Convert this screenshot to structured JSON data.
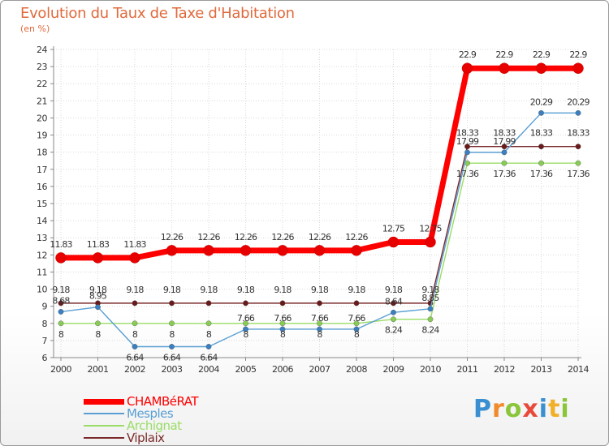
{
  "chart_data": {
    "type": "line",
    "title": "Evolution du Taux de Taxe d'Habitation",
    "subtitle": "(en %)",
    "x": [
      "2000",
      "2001",
      "2002",
      "2003",
      "2004",
      "2005",
      "2006",
      "2007",
      "2008",
      "2009",
      "2010",
      "2011",
      "2012",
      "2013",
      "2014"
    ],
    "ylim": [
      6,
      24
    ],
    "yticks": [
      "6",
      "7",
      "8",
      "9",
      "10",
      "11",
      "12",
      "13",
      "14",
      "15",
      "16",
      "17",
      "18",
      "19",
      "20",
      "21",
      "22",
      "23",
      "24"
    ],
    "grid": true,
    "series": [
      {
        "name": "CHAMBéRAT",
        "color": "#ff0000",
        "marker": "#e60000",
        "values": [
          11.83,
          11.83,
          11.83,
          12.26,
          12.26,
          12.26,
          12.26,
          12.26,
          12.26,
          12.75,
          12.75,
          22.9,
          22.9,
          22.9,
          22.9
        ],
        "labels": [
          "11.83",
          "11.83",
          "11.83",
          "12.26",
          "12.26",
          "12.26",
          "12.26",
          "12.26",
          "12.26",
          "12.75",
          "12.75",
          "22.9",
          "22.9",
          "22.9",
          "22.9"
        ]
      },
      {
        "name": "Mesples",
        "color": "#5a9fd4",
        "marker": "#3a7fc0",
        "values": [
          8.68,
          8.95,
          6.64,
          6.64,
          6.64,
          7.66,
          7.66,
          7.66,
          7.66,
          8.64,
          8.85,
          17.99,
          17.99,
          20.29,
          20.29
        ],
        "labels": [
          "8.68",
          "8.95",
          "6.64",
          "6.64",
          "6.64",
          "7.66",
          "7.66",
          "7.66",
          "7.66",
          "8.64",
          "8.85",
          "17.99",
          "17.99",
          "20.29",
          "20.29"
        ]
      },
      {
        "name": "Archignat",
        "color": "#99dd66",
        "marker": "#88cc55",
        "values": [
          8,
          8,
          8,
          8,
          8,
          8,
          8,
          8,
          8,
          8.24,
          8.24,
          17.36,
          17.36,
          17.36,
          17.36
        ],
        "labels": [
          "8",
          "8",
          "8",
          "8",
          "8",
          "8",
          "8",
          "8",
          "8",
          "8.24",
          "8.24",
          "17.36",
          "17.36",
          "17.36",
          "17.36"
        ]
      },
      {
        "name": "Viplaix",
        "color": "#7a2a2a",
        "marker": "#6a1a1a",
        "values": [
          9.18,
          9.18,
          9.18,
          9.18,
          9.18,
          9.18,
          9.18,
          9.18,
          9.18,
          9.18,
          9.18,
          18.33,
          18.33,
          18.33,
          18.33
        ],
        "labels": [
          "9.18",
          "9.18",
          "9.18",
          "9.18",
          "9.18",
          "9.18",
          "9.18",
          "9.18",
          "9.18",
          "9.18",
          "9.18",
          "18.33",
          "18.33",
          "18.33",
          "18.33"
        ]
      }
    ],
    "legend_position": "bottom-left"
  },
  "legend": {
    "items": [
      {
        "label": "CHAMBéRAT",
        "color": "#ff0000"
      },
      {
        "label": "Mesples",
        "color": "#5a9fd4"
      },
      {
        "label": "Archignat",
        "color": "#99dd66"
      },
      {
        "label": "Viplaix",
        "color": "#7a2a2a"
      }
    ]
  },
  "logo": {
    "letters": [
      "P",
      "r",
      "o",
      "x",
      "i",
      "t",
      "i"
    ],
    "colors": [
      "#3a8fd0",
      "#f08a2a",
      "#8ac53a",
      "#e84a3a",
      "#3a8fd0",
      "#f0b02a",
      "#8ac53a"
    ]
  }
}
